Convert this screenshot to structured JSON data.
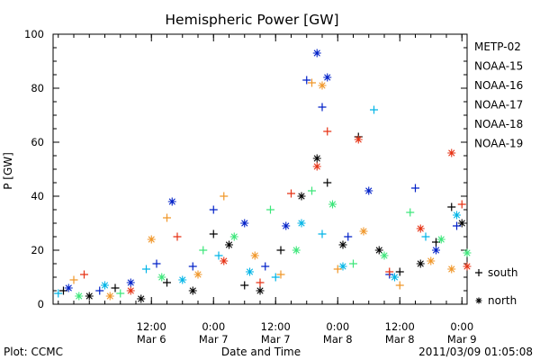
{
  "chart_data": {
    "type": "scatter",
    "title": "Hemispheric Power [GW]",
    "ylabel": "P [GW]",
    "xlabel": "Date and Time",
    "ylim": [
      0,
      100
    ],
    "y_ticks": [
      0,
      20,
      40,
      60,
      80,
      100
    ],
    "xlim": [
      "2011-03-05 17:00",
      "2011-03-09 01:00"
    ],
    "x_ticks": [
      {
        "at": "2011-03-06 12:00",
        "time": "12:00",
        "date": "Mar 6"
      },
      {
        "at": "2011-03-07 00:00",
        "time": "0:00",
        "date": "Mar 7"
      },
      {
        "at": "2011-03-07 12:00",
        "time": "12:00",
        "date": "Mar 7"
      },
      {
        "at": "2011-03-08 00:00",
        "time": "0:00",
        "date": "Mar 8"
      },
      {
        "at": "2011-03-08 12:00",
        "time": "12:00",
        "date": "Mar 8"
      },
      {
        "at": "2011-03-09 00:00",
        "time": "0:00",
        "date": "Mar 9"
      }
    ],
    "grid": false,
    "legend_position": "right",
    "hemisphere_markers": [
      {
        "symbol": "+",
        "label": "south"
      },
      {
        "symbol": "*",
        "label": "north"
      }
    ],
    "series": [
      {
        "name": "METP-02",
        "color": "#000000",
        "points": [
          {
            "x": "2011-03-05 19:00",
            "y": 5,
            "h": "+"
          },
          {
            "x": "2011-03-06 00:00",
            "y": 3,
            "h": "*"
          },
          {
            "x": "2011-03-06 05:00",
            "y": 6,
            "h": "+"
          },
          {
            "x": "2011-03-06 10:00",
            "y": 2,
            "h": "*"
          },
          {
            "x": "2011-03-06 15:00",
            "y": 8,
            "h": "+"
          },
          {
            "x": "2011-03-06 20:00",
            "y": 5,
            "h": "*"
          },
          {
            "x": "2011-03-07 00:00",
            "y": 26,
            "h": "+"
          },
          {
            "x": "2011-03-07 03:00",
            "y": 22,
            "h": "*"
          },
          {
            "x": "2011-03-07 06:00",
            "y": 7,
            "h": "+"
          },
          {
            "x": "2011-03-07 09:00",
            "y": 5,
            "h": "*"
          },
          {
            "x": "2011-03-07 13:00",
            "y": 20,
            "h": "+"
          },
          {
            "x": "2011-03-07 17:00",
            "y": 40,
            "h": "*"
          },
          {
            "x": "2011-03-07 20:00",
            "y": 54,
            "h": "*"
          },
          {
            "x": "2011-03-07 22:00",
            "y": 45,
            "h": "+"
          },
          {
            "x": "2011-03-08 01:00",
            "y": 22,
            "h": "*"
          },
          {
            "x": "2011-03-08 04:00",
            "y": 62,
            "h": "+"
          },
          {
            "x": "2011-03-08 08:00",
            "y": 20,
            "h": "*"
          },
          {
            "x": "2011-03-08 12:00",
            "y": 12,
            "h": "+"
          },
          {
            "x": "2011-03-08 16:00",
            "y": 15,
            "h": "*"
          },
          {
            "x": "2011-03-08 19:00",
            "y": 23,
            "h": "+"
          },
          {
            "x": "2011-03-08 22:00",
            "y": 36,
            "h": "+"
          },
          {
            "x": "2011-03-09 00:00",
            "y": 30,
            "h": "*"
          }
        ]
      },
      {
        "name": "NOAA-15",
        "color": "#0020c8",
        "points": [
          {
            "x": "2011-03-05 20:00",
            "y": 6,
            "h": "*"
          },
          {
            "x": "2011-03-06 02:00",
            "y": 5,
            "h": "+"
          },
          {
            "x": "2011-03-06 08:00",
            "y": 8,
            "h": "*"
          },
          {
            "x": "2011-03-06 13:00",
            "y": 15,
            "h": "+"
          },
          {
            "x": "2011-03-06 16:00",
            "y": 38,
            "h": "*"
          },
          {
            "x": "2011-03-06 20:00",
            "y": 14,
            "h": "+"
          },
          {
            "x": "2011-03-07 00:00",
            "y": 35,
            "h": "+"
          },
          {
            "x": "2011-03-07 06:00",
            "y": 30,
            "h": "*"
          },
          {
            "x": "2011-03-07 10:00",
            "y": 14,
            "h": "+"
          },
          {
            "x": "2011-03-07 14:00",
            "y": 29,
            "h": "*"
          },
          {
            "x": "2011-03-07 18:00",
            "y": 83,
            "h": "+"
          },
          {
            "x": "2011-03-07 20:00",
            "y": 93,
            "h": "*"
          },
          {
            "x": "2011-03-07 21:00",
            "y": 73,
            "h": "+"
          },
          {
            "x": "2011-03-07 22:00",
            "y": 84,
            "h": "*"
          },
          {
            "x": "2011-03-08 02:00",
            "y": 25,
            "h": "+"
          },
          {
            "x": "2011-03-08 06:00",
            "y": 42,
            "h": "*"
          },
          {
            "x": "2011-03-08 10:00",
            "y": 11,
            "h": "+"
          },
          {
            "x": "2011-03-08 15:00",
            "y": 43,
            "h": "+"
          },
          {
            "x": "2011-03-08 19:00",
            "y": 20,
            "h": "*"
          },
          {
            "x": "2011-03-08 23:00",
            "y": 29,
            "h": "+"
          }
        ]
      },
      {
        "name": "NOAA-16",
        "color": "#00b4e6",
        "points": [
          {
            "x": "2011-03-05 18:00",
            "y": 4,
            "h": "+"
          },
          {
            "x": "2011-03-06 03:00",
            "y": 7,
            "h": "*"
          },
          {
            "x": "2011-03-06 11:00",
            "y": 13,
            "h": "+"
          },
          {
            "x": "2011-03-06 18:00",
            "y": 9,
            "h": "*"
          },
          {
            "x": "2011-03-07 01:00",
            "y": 18,
            "h": "+"
          },
          {
            "x": "2011-03-07 07:00",
            "y": 12,
            "h": "*"
          },
          {
            "x": "2011-03-07 12:00",
            "y": 10,
            "h": "+"
          },
          {
            "x": "2011-03-07 17:00",
            "y": 30,
            "h": "*"
          },
          {
            "x": "2011-03-07 21:00",
            "y": 26,
            "h": "+"
          },
          {
            "x": "2011-03-08 01:00",
            "y": 14,
            "h": "*"
          },
          {
            "x": "2011-03-08 07:00",
            "y": 72,
            "h": "+"
          },
          {
            "x": "2011-03-08 11:00",
            "y": 10,
            "h": "*"
          },
          {
            "x": "2011-03-08 17:00",
            "y": 25,
            "h": "+"
          },
          {
            "x": "2011-03-08 23:00",
            "y": 33,
            "h": "*"
          }
        ]
      },
      {
        "name": "NOAA-17",
        "color": "#3ce67a",
        "points": [
          {
            "x": "2011-03-05 22:00",
            "y": 3,
            "h": "*"
          },
          {
            "x": "2011-03-06 06:00",
            "y": 4,
            "h": "+"
          },
          {
            "x": "2011-03-06 14:00",
            "y": 10,
            "h": "*"
          },
          {
            "x": "2011-03-06 22:00",
            "y": 20,
            "h": "+"
          },
          {
            "x": "2011-03-07 04:00",
            "y": 25,
            "h": "*"
          },
          {
            "x": "2011-03-07 11:00",
            "y": 35,
            "h": "+"
          },
          {
            "x": "2011-03-07 16:00",
            "y": 20,
            "h": "*"
          },
          {
            "x": "2011-03-07 19:00",
            "y": 42,
            "h": "+"
          },
          {
            "x": "2011-03-07 23:00",
            "y": 37,
            "h": "*"
          },
          {
            "x": "2011-03-08 03:00",
            "y": 15,
            "h": "+"
          },
          {
            "x": "2011-03-08 09:00",
            "y": 18,
            "h": "*"
          },
          {
            "x": "2011-03-08 14:00",
            "y": 34,
            "h": "+"
          },
          {
            "x": "2011-03-08 20:00",
            "y": 24,
            "h": "*"
          },
          {
            "x": "2011-03-09 01:00",
            "y": 19,
            "h": "*"
          }
        ]
      },
      {
        "name": "NOAA-18",
        "color": "#f09628",
        "points": [
          {
            "x": "2011-03-05 21:00",
            "y": 9,
            "h": "+"
          },
          {
            "x": "2011-03-06 04:00",
            "y": 3,
            "h": "*"
          },
          {
            "x": "2011-03-06 12:00",
            "y": 24,
            "h": "*"
          },
          {
            "x": "2011-03-06 15:00",
            "y": 32,
            "h": "+"
          },
          {
            "x": "2011-03-06 21:00",
            "y": 11,
            "h": "*"
          },
          {
            "x": "2011-03-07 02:00",
            "y": 40,
            "h": "+"
          },
          {
            "x": "2011-03-07 08:00",
            "y": 18,
            "h": "*"
          },
          {
            "x": "2011-03-07 13:00",
            "y": 11,
            "h": "+"
          },
          {
            "x": "2011-03-07 19:00",
            "y": 82,
            "h": "+"
          },
          {
            "x": "2011-03-07 21:00",
            "y": 81,
            "h": "*"
          },
          {
            "x": "2011-03-08 00:00",
            "y": 13,
            "h": "+"
          },
          {
            "x": "2011-03-08 05:00",
            "y": 27,
            "h": "*"
          },
          {
            "x": "2011-03-08 12:00",
            "y": 7,
            "h": "+"
          },
          {
            "x": "2011-03-08 18:00",
            "y": 16,
            "h": "*"
          },
          {
            "x": "2011-03-08 22:00",
            "y": 13,
            "h": "*"
          }
        ]
      },
      {
        "name": "NOAA-19",
        "color": "#e63214",
        "points": [
          {
            "x": "2011-03-05 23:00",
            "y": 11,
            "h": "+"
          },
          {
            "x": "2011-03-06 08:00",
            "y": 5,
            "h": "*"
          },
          {
            "x": "2011-03-06 17:00",
            "y": 25,
            "h": "+"
          },
          {
            "x": "2011-03-07 02:00",
            "y": 16,
            "h": "*"
          },
          {
            "x": "2011-03-07 09:00",
            "y": 8,
            "h": "+"
          },
          {
            "x": "2011-03-07 15:00",
            "y": 41,
            "h": "+"
          },
          {
            "x": "2011-03-07 20:00",
            "y": 51,
            "h": "*"
          },
          {
            "x": "2011-03-07 22:00",
            "y": 64,
            "h": "+"
          },
          {
            "x": "2011-03-08 04:00",
            "y": 61,
            "h": "*"
          },
          {
            "x": "2011-03-08 10:00",
            "y": 12,
            "h": "+"
          },
          {
            "x": "2011-03-08 16:00",
            "y": 28,
            "h": "*"
          },
          {
            "x": "2011-03-08 22:00",
            "y": 56,
            "h": "*"
          },
          {
            "x": "2011-03-09 00:00",
            "y": 37,
            "h": "+"
          },
          {
            "x": "2011-03-09 01:00",
            "y": 14,
            "h": "*"
          }
        ]
      }
    ]
  },
  "footer": {
    "plot_credit": "Plot: CCMC",
    "timestamp": "2011/03/09 01:05:08"
  }
}
